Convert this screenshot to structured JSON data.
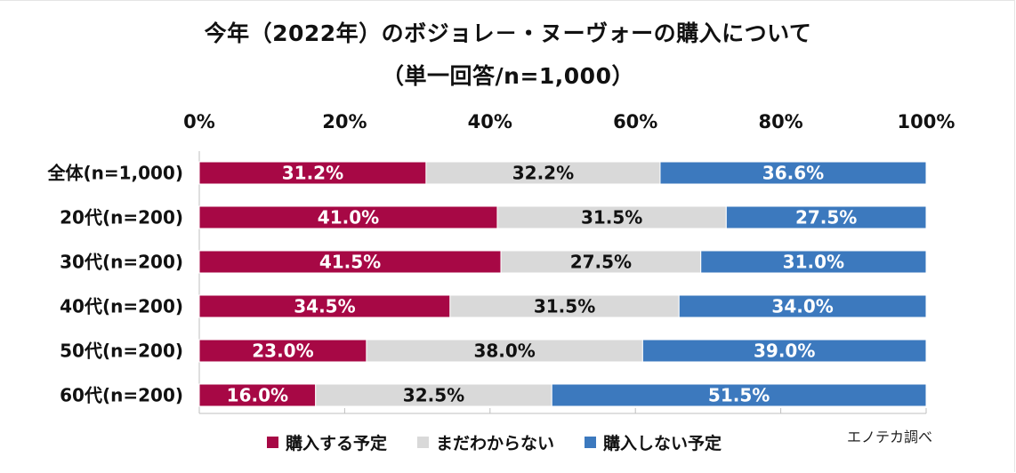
{
  "colors": {
    "buy": "#A70845",
    "undecided": "#D9D9D9",
    "not_buy": "#3C79BE",
    "axis": "#bfbfbf"
  },
  "chart_data": {
    "type": "bar",
    "orientation": "horizontal",
    "stacked": true,
    "title": "今年（2022年）のボジョレ－・ヌーヴォーの購入について",
    "subtitle": "（単一回答/n=1,000）",
    "xlim": [
      0,
      100
    ],
    "xticks": [
      "0%",
      "20%",
      "40%",
      "60%",
      "80%",
      "100%"
    ],
    "categories": [
      "全体(n=1,000)",
      "20代(n=200)",
      "30代(n=200)",
      "40代(n=200)",
      "50代(n=200)",
      "60代(n=200)"
    ],
    "series": [
      {
        "name": "購入する予定",
        "color_key": "buy",
        "text_color": "#ffffff",
        "values": [
          31.2,
          41.0,
          41.5,
          34.5,
          23.0,
          16.0
        ],
        "labels": [
          "31.2%",
          "41.0%",
          "41.5%",
          "34.5%",
          "23.0%",
          "16.0%"
        ]
      },
      {
        "name": "まだわからない",
        "color_key": "undecided",
        "text_color": "#111111",
        "values": [
          32.2,
          31.5,
          27.5,
          31.5,
          38.0,
          32.5
        ],
        "labels": [
          "32.2%",
          "31.5%",
          "27.5%",
          "31.5%",
          "38.0%",
          "32.5%"
        ]
      },
      {
        "name": "購入しない予定",
        "color_key": "not_buy",
        "text_color": "#ffffff",
        "values": [
          36.6,
          27.5,
          31.0,
          34.0,
          39.0,
          51.5
        ],
        "labels": [
          "36.6%",
          "27.5%",
          "31.0%",
          "34.0%",
          "39.0%",
          "51.5%"
        ]
      }
    ],
    "legend_position": "bottom"
  },
  "source_note": "エノテカ調べ"
}
